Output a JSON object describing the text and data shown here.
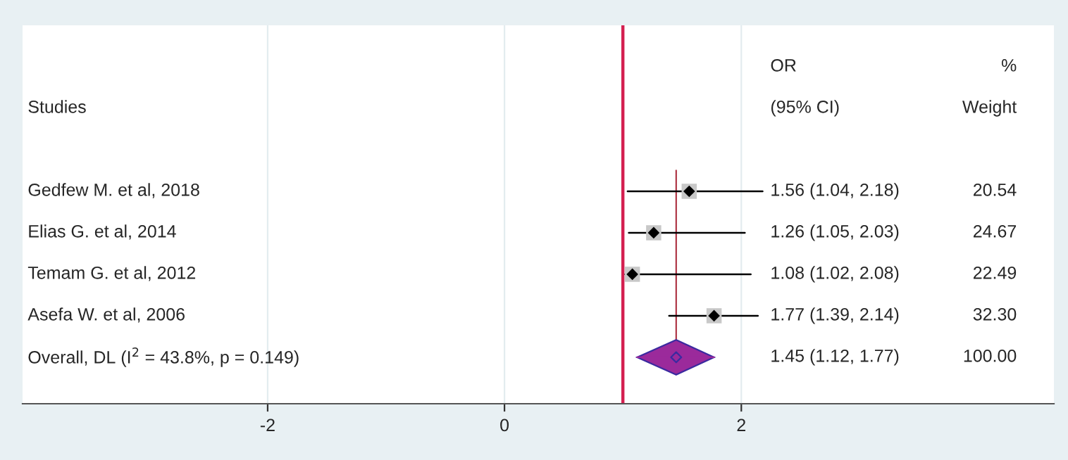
{
  "chart_data": {
    "type": "scatter",
    "orientation": "horizontal",
    "categories": [
      "Gedfew M. et al, 2018",
      "Elias G. et al, 2014",
      "Temam G. et al, 2012",
      "Asefa W. et al, 2006",
      "Overall, DL (I$^{2}$ = 43.8%, p = 0.149)"
    ],
    "series": [
      {
        "color": "#000000",
        "marker": "diamond",
        "values": [
          1.56,
          1.26,
          1.08,
          1.77,
          null
        ],
        "errors": [
          [
            1.04,
            2.18
          ],
          [
            1.05,
            2.03
          ],
          [
            1.02,
            2.08
          ],
          [
            1.39,
            2.14
          ],
          null
        ]
      },
      {
        "color": "#9b2a9b",
        "marker": "diamond",
        "values": [
          null,
          null,
          null,
          null,
          1.45
        ],
        "errors": [
          null,
          null,
          null,
          null,
          [
            1.12,
            1.77
          ]
        ]
      }
    ],
    "value_labels": [
      "1.56 (1.04, 2.18)",
      "1.26 (1.05, 2.03)",
      "1.08 (1.02, 2.08)",
      "1.77 (1.39, 2.14)",
      "1.45 (1.12, 1.77)"
    ],
    "annotations": [
      "OR",
      "(95% CI)",
      "%",
      "Weight",
      "Studies",
      "20.54",
      "24.67",
      "22.49",
      "32.30",
      "100.00"
    ],
    "ref_lines": [
      {
        "axis": "x",
        "value": 1,
        "color": "#d42050"
      },
      {
        "axis": "x",
        "value": 1.45,
        "color": "#b03848"
      }
    ],
    "xlim": [
      -4.07,
      4.64
    ],
    "xticks": [
      -2,
      0,
      2
    ],
    "grid": "x",
    "tick_labels": "x"
  }
}
